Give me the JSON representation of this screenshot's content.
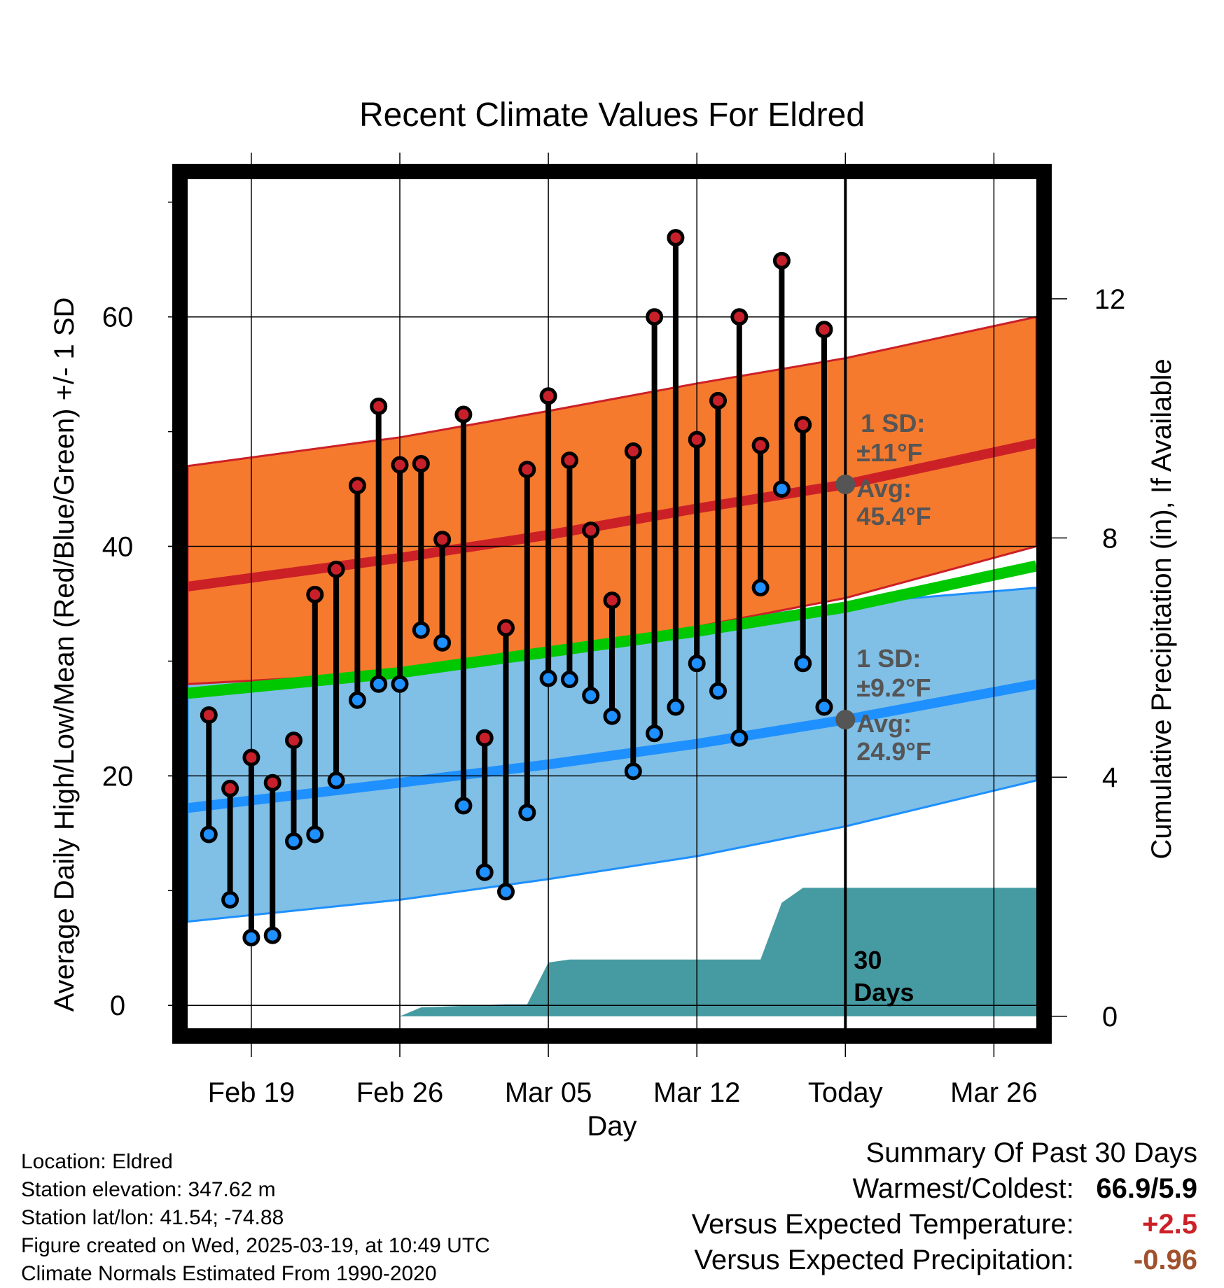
{
  "chart_data": {
    "type": "line",
    "title": "Recent Climate Values For Eldred",
    "xlabel": "Day",
    "ylabel_left": "Average Daily High/Low/Mean (Red/Blue/Green) +/- 1 SD",
    "ylabel_right": "Cumulative Precipitation (in), If Available",
    "x_tick_labels": [
      "Feb 19",
      "Feb 26",
      "Mar 05",
      "Mar 12",
      "Today",
      "Mar 26"
    ],
    "x_tick_dates": [
      "2025-02-19",
      "2025-02-26",
      "2025-03-05",
      "2025-03-12",
      "2025-03-19",
      "2025-03-26"
    ],
    "x_range": [
      "2025-02-16",
      "2025-03-28"
    ],
    "today": "2025-03-19",
    "ylim": [
      -2,
      72
    ],
    "y_ticks": [
      0,
      20,
      40,
      60
    ],
    "y2lim": [
      -0.2,
      14
    ],
    "y2_ticks": [
      0,
      4,
      8,
      12
    ],
    "grid": true,
    "colors": {
      "high_band": "#f57a2e",
      "high_line": "#cc2027",
      "low_band": "#80bfe6",
      "low_line": "#1e90ff",
      "mean_line": "#00c800",
      "precip": "#469ba3",
      "high_dot": "#c8202a",
      "low_dot": "#1e90ff",
      "today_dot": "#555555",
      "annotation": "#555555"
    },
    "normals": {
      "dates": [
        "2025-02-16",
        "2025-02-26",
        "2025-03-05",
        "2025-03-12",
        "2025-03-19",
        "2025-03-28"
      ],
      "high_avg": [
        36.5,
        39.0,
        41.0,
        43.3,
        45.4,
        49.0
      ],
      "high_upper": [
        47.0,
        49.5,
        51.8,
        54.2,
        56.4,
        60.0
      ],
      "high_lower": [
        28.0,
        29.0,
        30.8,
        33.0,
        35.5,
        40.0
      ],
      "mean": [
        27.2,
        29.0,
        30.8,
        32.6,
        34.7,
        38.3
      ],
      "low_avg": [
        17.2,
        19.4,
        21.0,
        22.8,
        24.9,
        28.0
      ],
      "low_upper": [
        28.0,
        29.8,
        31.5,
        33.2,
        35.0,
        36.4
      ],
      "low_lower": [
        7.3,
        9.2,
        11.0,
        13.0,
        15.6,
        19.6
      ]
    },
    "daily": {
      "dates": [
        "2025-02-17",
        "2025-02-18",
        "2025-02-19",
        "2025-02-20",
        "2025-02-21",
        "2025-02-22",
        "2025-02-23",
        "2025-02-24",
        "2025-02-25",
        "2025-02-26",
        "2025-02-27",
        "2025-02-28",
        "2025-03-01",
        "2025-03-02",
        "2025-03-03",
        "2025-03-04",
        "2025-03-05",
        "2025-03-06",
        "2025-03-07",
        "2025-03-08",
        "2025-03-09",
        "2025-03-10",
        "2025-03-11",
        "2025-03-12",
        "2025-03-13",
        "2025-03-14",
        "2025-03-15",
        "2025-03-16",
        "2025-03-17",
        "2025-03-18"
      ],
      "high": [
        25.3,
        18.9,
        21.6,
        19.4,
        23.1,
        35.8,
        38.0,
        45.3,
        52.2,
        47.1,
        47.2,
        40.6,
        51.5,
        23.3,
        32.9,
        46.7,
        53.1,
        47.5,
        41.4,
        35.3,
        48.3,
        60.0,
        66.9,
        49.3,
        52.7,
        60.0,
        48.8,
        64.9,
        50.6,
        58.9
      ],
      "low": [
        14.9,
        9.2,
        5.9,
        6.1,
        14.3,
        14.9,
        19.6,
        26.6,
        28.0,
        28.0,
        32.7,
        31.6,
        17.4,
        11.6,
        9.9,
        16.8,
        28.5,
        28.4,
        27.0,
        25.2,
        20.4,
        23.7,
        26.0,
        29.8,
        27.4,
        23.3,
        36.4,
        45.0,
        29.8,
        26.0
      ]
    },
    "precip_cumulative": {
      "dates": [
        "2025-02-16",
        "2025-02-26",
        "2025-02-27",
        "2025-03-03",
        "2025-03-04",
        "2025-03-05",
        "2025-03-06",
        "2025-03-15",
        "2025-03-16",
        "2025-03-17",
        "2025-03-18",
        "2025-03-28"
      ],
      "values": [
        0.0,
        0.0,
        0.15,
        0.2,
        0.2,
        0.9,
        0.95,
        0.95,
        1.9,
        2.15,
        2.15,
        2.15
      ]
    },
    "annotations": {
      "high_sd": "1 SD:",
      "high_sd_val": "±11°F",
      "high_avg": "Avg:",
      "high_avg_val": "45.4°F",
      "low_sd": "1 SD:",
      "low_sd_val": "±9.2°F",
      "low_avg": "Avg:",
      "low_avg_val": "24.9°F",
      "days_num": "30",
      "days_word": "Days"
    }
  },
  "footer": {
    "location": "Location: Eldred",
    "elevation": "Station elevation: 347.62 m",
    "latlon": "Station lat/lon: 41.54; -74.88",
    "created": "Figure created on Wed, 2025-03-19, at 10:49 UTC",
    "normals": "Climate Normals Estimated From 1990-2020"
  },
  "summary": {
    "title": "Summary Of Past 30 Days",
    "warm_cold_label": "Warmest/Coldest:",
    "warm_cold_value": "66.9/5.9",
    "temp_label": "Versus Expected Temperature:",
    "temp_value": "+2.5",
    "temp_color": "#cc2027",
    "precip_label": "Versus Expected Precipitation:",
    "precip_value": "-0.96",
    "precip_color": "#a0522d"
  }
}
